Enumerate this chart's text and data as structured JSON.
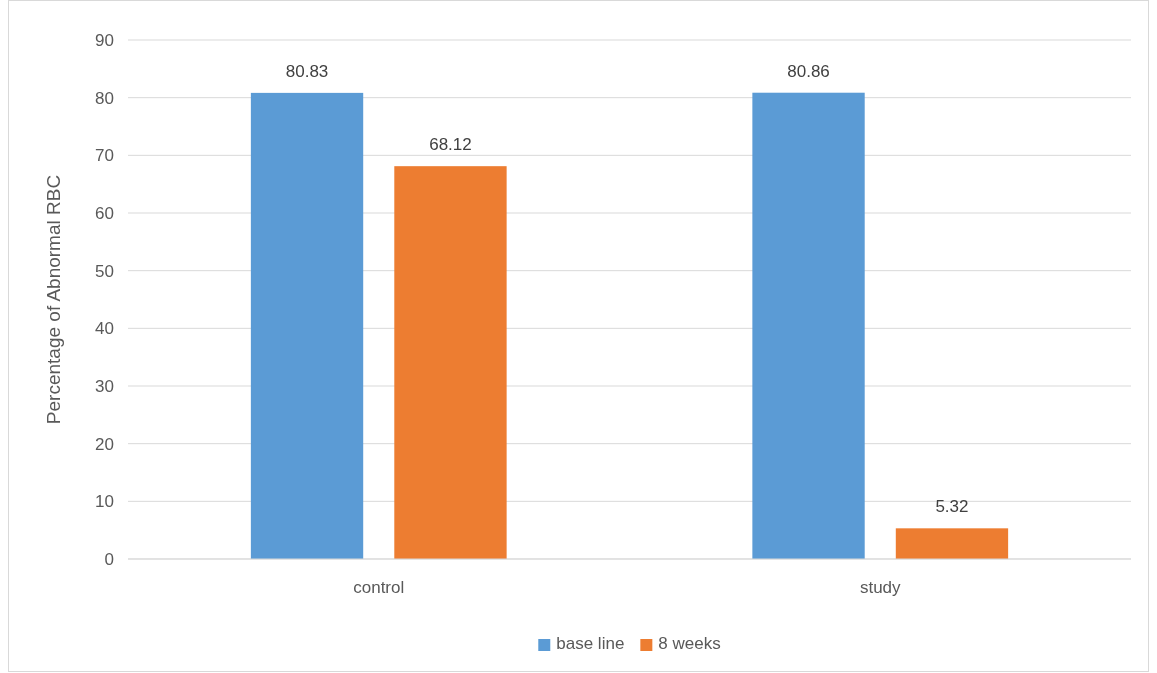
{
  "chart_data": {
    "type": "bar",
    "ylabel": "Percentage of Abnormal RBC",
    "categories": [
      "control",
      "study"
    ],
    "series": [
      {
        "name": "base line",
        "color": "#5b9bd5",
        "values": [
          80.83,
          80.86
        ]
      },
      {
        "name": "8 weeks",
        "color": "#ed7d31",
        "values": [
          68.12,
          5.32
        ]
      }
    ],
    "ylim": [
      0,
      90
    ],
    "yticks": [
      0,
      10,
      20,
      30,
      40,
      50,
      60,
      70,
      80,
      90
    ],
    "grid": "y",
    "legend": "bottom",
    "data_labels": true
  }
}
